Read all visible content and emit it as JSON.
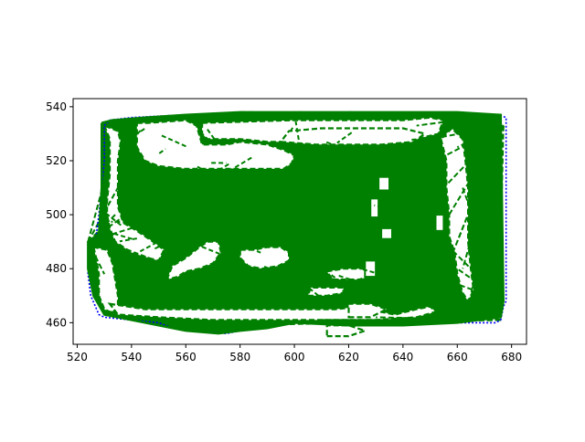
{
  "chart_data": {
    "type": "line",
    "title": "",
    "xlabel": "",
    "ylabel": "",
    "xlim": [
      518.5,
      685.5
    ],
    "ylim": [
      452.0,
      543.0
    ],
    "x_ticks": [
      520,
      540,
      560,
      580,
      600,
      620,
      640,
      660,
      680
    ],
    "y_ticks": [
      460,
      480,
      500,
      520,
      540
    ],
    "grid": false,
    "legend": "none",
    "colors": {
      "outline": "#0000ff",
      "fill_network": "#008000",
      "spine": "#000000"
    },
    "series": [
      {
        "style": "dotted-blue",
        "color": "#0000ff",
        "points": [
          [
            530,
            533
          ],
          [
            532,
            535
          ],
          [
            540,
            536
          ],
          [
            560,
            537
          ],
          [
            580,
            538
          ],
          [
            600,
            538
          ],
          [
            620,
            538
          ],
          [
            640,
            538
          ],
          [
            660,
            538
          ],
          [
            675,
            537
          ],
          [
            678,
            536
          ],
          [
            678,
            468
          ],
          [
            677,
            466
          ],
          [
            676,
            461
          ],
          [
            674,
            460
          ],
          [
            660,
            460
          ],
          [
            640,
            459
          ],
          [
            620,
            459
          ],
          [
            600,
            460
          ],
          [
            590,
            458
          ],
          [
            580,
            457
          ],
          [
            575,
            456
          ],
          [
            560,
            457
          ],
          [
            555,
            458
          ],
          [
            550,
            460
          ],
          [
            540,
            461
          ],
          [
            530,
            462
          ],
          [
            528,
            463
          ],
          [
            525,
            470
          ],
          [
            524,
            478
          ],
          [
            524,
            485
          ],
          [
            524,
            490
          ],
          [
            527,
            492
          ],
          [
            528,
            500
          ],
          [
            529,
            510
          ],
          [
            530,
            520
          ],
          [
            530,
            533
          ]
        ]
      },
      {
        "style": "solid-green",
        "color": "#008000",
        "points": [
          [
            529,
            534
          ],
          [
            533,
            535
          ],
          [
            545,
            536
          ],
          [
            560,
            537
          ],
          [
            580,
            538
          ],
          [
            600,
            538
          ],
          [
            620,
            538
          ],
          [
            640,
            538
          ],
          [
            660,
            538
          ],
          [
            676,
            537
          ],
          [
            677,
            468
          ],
          [
            676,
            462
          ],
          [
            660,
            460
          ],
          [
            640,
            459
          ],
          [
            620,
            459
          ],
          [
            600,
            460
          ],
          [
            590,
            458
          ],
          [
            580,
            457
          ],
          [
            572,
            456
          ],
          [
            560,
            457
          ],
          [
            550,
            459
          ],
          [
            540,
            461
          ],
          [
            530,
            463
          ],
          [
            526,
            470
          ],
          [
            524,
            480
          ],
          [
            524,
            490
          ],
          [
            528,
            493
          ],
          [
            529,
            510
          ],
          [
            529,
            534
          ]
        ]
      }
    ],
    "fans": [
      {
        "anchor": [
          677,
          533
        ],
        "targets": [
          [
            650,
            528
          ],
          [
            652,
            520
          ],
          [
            655,
            510
          ],
          [
            657,
            500
          ],
          [
            660,
            490
          ],
          [
            662,
            480
          ],
          [
            665,
            470
          ],
          [
            668,
            466
          ],
          [
            671,
            468
          ],
          [
            673,
            472
          ],
          [
            675,
            480
          ],
          [
            676,
            490
          ],
          [
            666,
            515
          ],
          [
            660,
            525
          ],
          [
            670,
            505
          ],
          [
            664,
            500
          ],
          [
            658,
            485
          ],
          [
            672,
            495
          ]
        ]
      },
      {
        "anchor": [
          677,
          468
        ],
        "targets": [
          [
            660,
            480
          ],
          [
            655,
            490
          ],
          [
            665,
            495
          ],
          [
            668,
            505
          ],
          [
            670,
            515
          ],
          [
            672,
            525
          ],
          [
            674,
            530
          ],
          [
            662,
            510
          ],
          [
            658,
            475
          ]
        ]
      },
      {
        "anchor": [
          524,
          490
        ],
        "targets": [
          [
            535,
            510
          ],
          [
            534,
            500
          ],
          [
            540,
            495
          ],
          [
            545,
            505
          ],
          [
            532,
            520
          ],
          [
            540,
            485
          ],
          [
            530,
            478
          ],
          [
            528,
            470
          ]
        ]
      },
      {
        "anchor": [
          676,
          537
        ],
        "targets": [
          [
            560,
            537
          ],
          [
            580,
            538
          ],
          [
            600,
            538
          ],
          [
            620,
            538
          ],
          [
            640,
            537
          ],
          [
            655,
            535
          ],
          [
            645,
            533
          ]
        ]
      },
      {
        "anchor": [
          676,
          461
        ],
        "targets": [
          [
            560,
            460
          ],
          [
            575,
            459
          ],
          [
            590,
            460
          ],
          [
            610,
            461
          ],
          [
            630,
            462
          ],
          [
            650,
            462
          ],
          [
            660,
            463
          ]
        ]
      }
    ],
    "holes": [
      {
        "points": [
          [
            542,
            534
          ],
          [
            546,
            534
          ],
          [
            560,
            535
          ],
          [
            564,
            533
          ],
          [
            566,
            526
          ],
          [
            575,
            526
          ],
          [
            580,
            527
          ],
          [
            590,
            526
          ],
          [
            596,
            524
          ],
          [
            598,
            523
          ],
          [
            600,
            522
          ],
          [
            599,
            519
          ],
          [
            596,
            517
          ],
          [
            575,
            517
          ],
          [
            560,
            517
          ],
          [
            550,
            518
          ],
          [
            545,
            520
          ],
          [
            542,
            525
          ]
        ]
      },
      {
        "points": [
          [
            566,
            534
          ],
          [
            600,
            535
          ],
          [
            625,
            535
          ],
          [
            640,
            535
          ],
          [
            650,
            536
          ],
          [
            655,
            535
          ],
          [
            653,
            530
          ],
          [
            645,
            528
          ],
          [
            620,
            527
          ],
          [
            600,
            527
          ],
          [
            590,
            527
          ],
          [
            580,
            528
          ],
          [
            568,
            528
          ],
          [
            566,
            530
          ]
        ]
      },
      {
        "points": [
          [
            530,
            533
          ],
          [
            532,
            528
          ],
          [
            532,
            515
          ],
          [
            531,
            505
          ],
          [
            531,
            500
          ],
          [
            532,
            495
          ],
          [
            534,
            490
          ],
          [
            540,
            486
          ],
          [
            546,
            484
          ],
          [
            550,
            483
          ],
          [
            552,
            487
          ],
          [
            548,
            490
          ],
          [
            542,
            494
          ],
          [
            537,
            497
          ],
          [
            535,
            503
          ],
          [
            535,
            510
          ],
          [
            535,
            520
          ],
          [
            536,
            527
          ],
          [
            535,
            531
          ]
        ]
      },
      {
        "points": [
          [
            526,
            488
          ],
          [
            527,
            484
          ],
          [
            528,
            478
          ],
          [
            528,
            470
          ],
          [
            530,
            465
          ],
          [
            532,
            464
          ],
          [
            535,
            465
          ],
          [
            535,
            470
          ],
          [
            534,
            476
          ],
          [
            533,
            482
          ],
          [
            531,
            487
          ]
        ]
      },
      {
        "points": [
          [
            532,
            467
          ],
          [
            545,
            465
          ],
          [
            560,
            465
          ],
          [
            575,
            465
          ],
          [
            590,
            465
          ],
          [
            600,
            465
          ],
          [
            615,
            465
          ],
          [
            625,
            466
          ],
          [
            632,
            464
          ],
          [
            637,
            463
          ],
          [
            645,
            465
          ],
          [
            650,
            466
          ],
          [
            652,
            464
          ],
          [
            645,
            462
          ],
          [
            630,
            461
          ],
          [
            610,
            461
          ],
          [
            590,
            461
          ],
          [
            570,
            461
          ],
          [
            550,
            462
          ],
          [
            535,
            463
          ]
        ]
      },
      {
        "points": [
          [
            553,
            476
          ],
          [
            555,
            481
          ],
          [
            560,
            484
          ],
          [
            565,
            488
          ],
          [
            568,
            490
          ],
          [
            572,
            490
          ],
          [
            573,
            486
          ],
          [
            570,
            482
          ],
          [
            565,
            480
          ],
          [
            560,
            479
          ],
          [
            557,
            477
          ]
        ]
      },
      {
        "points": [
          [
            580,
            487
          ],
          [
            585,
            487
          ],
          [
            590,
            488
          ],
          [
            595,
            488
          ],
          [
            598,
            486
          ],
          [
            598,
            483
          ],
          [
            594,
            481
          ],
          [
            588,
            480
          ],
          [
            583,
            481
          ],
          [
            580,
            484
          ]
        ]
      },
      {
        "points": [
          [
            654,
            528
          ],
          [
            656,
            520
          ],
          [
            656,
            510
          ],
          [
            657,
            500
          ],
          [
            657,
            492
          ],
          [
            659,
            486
          ],
          [
            660,
            478
          ],
          [
            662,
            471
          ],
          [
            664,
            468
          ],
          [
            666,
            472
          ],
          [
            665,
            480
          ],
          [
            664,
            490
          ],
          [
            664,
            500
          ],
          [
            664,
            510
          ],
          [
            663,
            520
          ],
          [
            662,
            528
          ],
          [
            658,
            532
          ]
        ]
      },
      {
        "points": [
          [
            605,
            470
          ],
          [
            612,
            470
          ],
          [
            618,
            471
          ],
          [
            618,
            473
          ],
          [
            612,
            473
          ],
          [
            606,
            473
          ]
        ]
      },
      {
        "points": [
          [
            614,
            476
          ],
          [
            624,
            476
          ],
          [
            630,
            478
          ],
          [
            628,
            480
          ],
          [
            618,
            480
          ],
          [
            612,
            479
          ]
        ]
      },
      {
        "points": [
          [
            620,
            462
          ],
          [
            628,
            462
          ],
          [
            634,
            465
          ],
          [
            628,
            467
          ],
          [
            620,
            467
          ]
        ]
      },
      {
        "points": [
          [
            612,
            455
          ],
          [
            620,
            455
          ],
          [
            626,
            457
          ],
          [
            620,
            459
          ],
          [
            612,
            459
          ]
        ]
      },
      {
        "points": [
          [
            595,
            527
          ],
          [
            608,
            526
          ],
          [
            620,
            526
          ],
          [
            632,
            526
          ],
          [
            644,
            527
          ],
          [
            648,
            530
          ],
          [
            640,
            532
          ],
          [
            625,
            532
          ],
          [
            610,
            532
          ],
          [
            598,
            531
          ]
        ]
      }
    ],
    "boxes": [
      {
        "x0": 631,
        "x1": 635,
        "y0": 509,
        "y1": 514
      },
      {
        "x0": 628,
        "x1": 631,
        "y0": 499,
        "y1": 506
      },
      {
        "x0": 632,
        "x1": 636,
        "y0": 491,
        "y1": 495
      },
      {
        "x0": 652,
        "x1": 655,
        "y0": 494,
        "y1": 500
      },
      {
        "x0": 626,
        "x1": 630,
        "y0": 477,
        "y1": 483
      }
    ]
  }
}
